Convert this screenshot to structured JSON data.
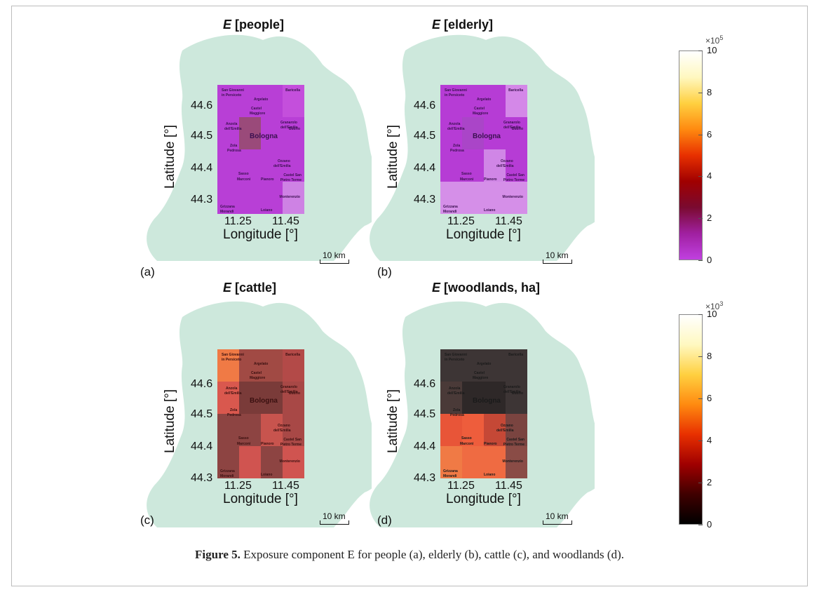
{
  "panels": [
    {
      "id": "a",
      "title_var": "E",
      "title_rest": " [people]",
      "letter": "(a)",
      "xticks": [
        "11.25",
        "11.45"
      ],
      "yticks": [
        "44.6",
        "44.5",
        "44.4",
        "44.3"
      ],
      "xlabel": "Longitude [°]",
      "ylabel": "Latitude [°]",
      "scalebar": "10 km",
      "cells": [
        "#b83fd6",
        "#b83fd6",
        "#b83fd6",
        "#c44fdc",
        "#b83fd6",
        "#9a4a7a",
        "#b83fd6",
        "#b83fd6",
        "#b83fd6",
        "#b83fd6",
        "#b83fd6",
        "#b83fd6",
        "#b83fd6",
        "#b83fd6",
        "#b83fd6",
        "#ce82e4"
      ]
    },
    {
      "id": "b",
      "title_var": "E",
      "title_rest": " [elderly]",
      "letter": "(b)",
      "xticks": [
        "11.25",
        "11.45"
      ],
      "yticks": [
        "44.6",
        "44.5",
        "44.4",
        "44.3"
      ],
      "xlabel": "Longitude [°]",
      "ylabel": "Latitude [°]",
      "scalebar": "10 km",
      "cells": [
        "#b63cd5",
        "#b63cd5",
        "#b63cd5",
        "#d488e8",
        "#b63cd5",
        "#aa45c8",
        "#b63cd5",
        "#b63cd5",
        "#b63cd5",
        "#b63cd5",
        "#d086e6",
        "#b63cd5",
        "#d58fe8",
        "#d58fe8",
        "#d58fe8",
        "#d58fe8"
      ]
    },
    {
      "id": "c",
      "title_var": "E",
      "title_rest": " [cattle]",
      "letter": "(c)",
      "xticks": [
        "11.25",
        "11.45"
      ],
      "yticks": [
        "44.6",
        "44.5",
        "44.4",
        "44.3"
      ],
      "xlabel": "Longitude [°]",
      "ylabel": "Latitude [°]",
      "scalebar": "10 km",
      "cells": [
        "#f07a45",
        "#a14a44",
        "#a14a44",
        "#b34a48",
        "#d9584e",
        "#7a3b39",
        "#7a3b39",
        "#a84846",
        "#8d4442",
        "#8d4442",
        "#c8544e",
        "#a84846",
        "#8d4442",
        "#d05450",
        "#8d4442",
        "#d05450"
      ]
    },
    {
      "id": "d",
      "title_var": "E",
      "title_rest": " [woodlands, ha]",
      "letter": "(d)",
      "xticks": [
        "11.25",
        "11.45"
      ],
      "yticks": [
        "44.6",
        "44.5",
        "44.4",
        "44.3"
      ],
      "xlabel": "Longitude [°]",
      "ylabel": "Latitude [°]",
      "scalebar": "10 km",
      "cells": [
        "#3d3535",
        "#3d3535",
        "#3d3535",
        "#3d3535",
        "#4a3a38",
        "#2e2828",
        "#2e2828",
        "#3d3535",
        "#e85538",
        "#ee5d3c",
        "#c54836",
        "#7a4440",
        "#f07a45",
        "#ef6b42",
        "#ef6b42",
        "#8a4c46"
      ]
    }
  ],
  "map_labels": [
    {
      "text": "San Giovanni",
      "cls": "s"
    },
    {
      "text": "in Persiceto",
      "cls": "s"
    },
    {
      "text": "Baricella",
      "cls": "s"
    },
    {
      "text": "Argelato",
      "cls": "s"
    },
    {
      "text": "Castel",
      "cls": "s"
    },
    {
      "text": "Maggiore",
      "cls": "s"
    },
    {
      "text": "Anzola",
      "cls": "s"
    },
    {
      "text": "dell'Emilia",
      "cls": "s"
    },
    {
      "text": "Granarolo",
      "cls": "s"
    },
    {
      "text": "dell'Emilia",
      "cls": "s"
    },
    {
      "text": "Budrio",
      "cls": "s"
    },
    {
      "text": "Bologna",
      "cls": "b"
    },
    {
      "text": "Zola",
      "cls": "s"
    },
    {
      "text": "Pedrosa",
      "cls": "s"
    },
    {
      "text": "Ozzano",
      "cls": "s"
    },
    {
      "text": "dell'Emilia",
      "cls": "s"
    },
    {
      "text": "Sasso",
      "cls": "s"
    },
    {
      "text": "Marconi",
      "cls": "s"
    },
    {
      "text": "Pianoro",
      "cls": "s"
    },
    {
      "text": "Castel San",
      "cls": "s"
    },
    {
      "text": "Pietro Terme",
      "cls": "s"
    },
    {
      "text": "Monterenzio",
      "cls": "s"
    },
    {
      "text": "Grizzana",
      "cls": "s"
    },
    {
      "text": "Morandi",
      "cls": "s"
    },
    {
      "text": "Loiano",
      "cls": "s"
    }
  ],
  "colorbars": [
    {
      "multiplier_base": "×10",
      "multiplier_exp": "5",
      "ticks": [
        "10",
        "8",
        "6",
        "4",
        "2",
        "0"
      ],
      "range": [
        0,
        10
      ],
      "colors": [
        "#ffffff",
        "#fff8c0",
        "#ffd040",
        "#ff8a10",
        "#e83000",
        "#a00000",
        "#7a0a30",
        "#a020a0",
        "#c040e0"
      ]
    },
    {
      "multiplier_base": "×10",
      "multiplier_exp": "3",
      "ticks": [
        "10",
        "8",
        "6",
        "4",
        "2",
        "0"
      ],
      "range": [
        0,
        10
      ],
      "colors": [
        "#ffffff",
        "#fff8c0",
        "#ffd040",
        "#ff8a10",
        "#e83000",
        "#a00000",
        "#400000",
        "#000000"
      ]
    }
  ],
  "caption": {
    "label": "Figure 5.",
    "text": " Exposure component E for people (a), elderly (b), cattle (c), and woodlands (d)."
  },
  "colors": {
    "region_fill": "#cde8dc",
    "frame_border": "#bdbdbd"
  }
}
